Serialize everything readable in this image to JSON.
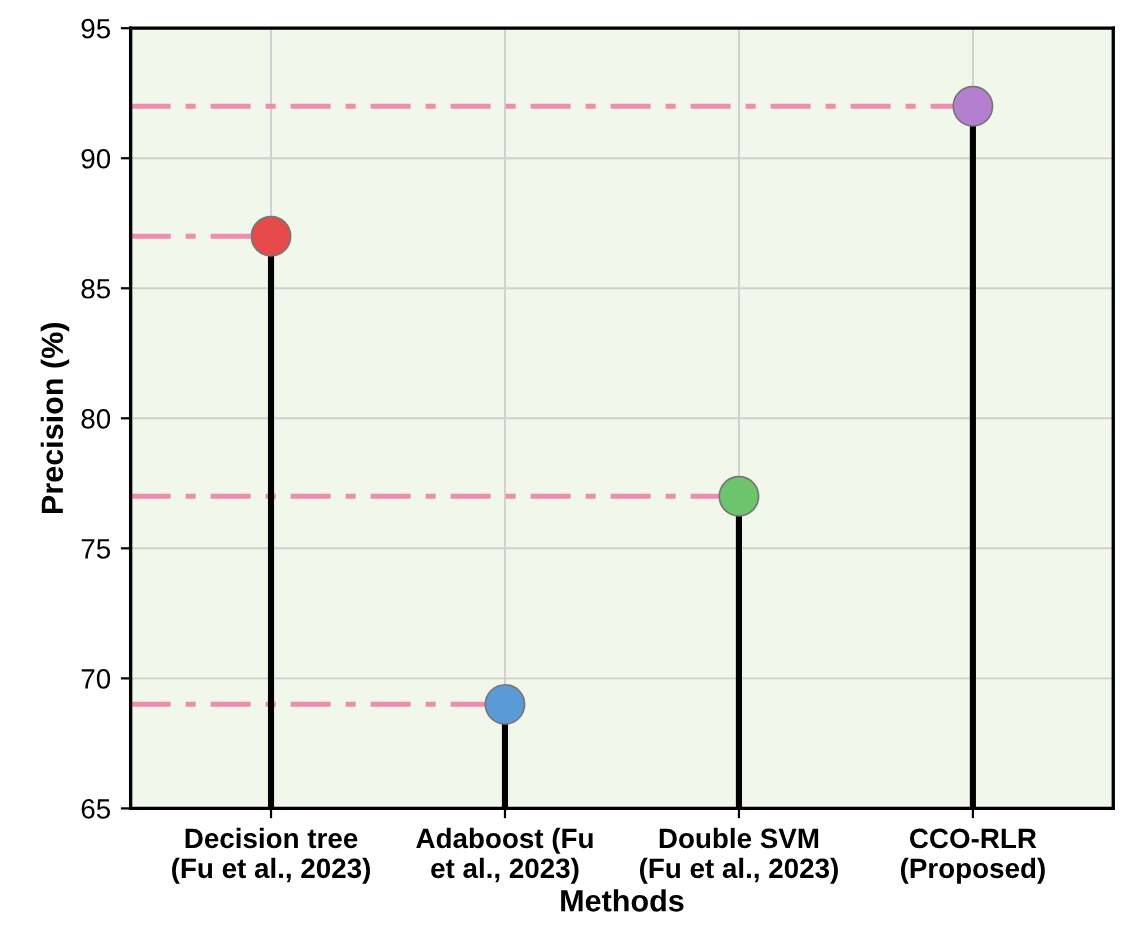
{
  "chart_data": {
    "type": "lollipop",
    "xlabel": "Methods",
    "ylabel": "Precision (%)",
    "categories": [
      "Decision tree\n(Fu et al., 2023)",
      "Adaboost (Fu\net al., 2023)",
      "Double SVM\n(Fu et al., 2023)",
      "CCO-RLR\n(Proposed)"
    ],
    "values": [
      87,
      69,
      77,
      92
    ],
    "colors": [
      "#e64a4a",
      "#5b9bd5",
      "#6cc46c",
      "#b57fd0"
    ],
    "ylim": [
      65,
      95
    ],
    "yticks": [
      65,
      70,
      75,
      80,
      85,
      90,
      95
    ],
    "grid": true,
    "marker": "circle",
    "ref_lines": [
      {
        "axis": "y",
        "value": 87,
        "color": "#f08cb0",
        "line_style": "dashdot"
      },
      {
        "axis": "y",
        "value": 69,
        "color": "#f08cb0",
        "line_style": "dashdot"
      },
      {
        "axis": "y",
        "value": 77,
        "color": "#f08cb0",
        "line_style": "dashdot"
      },
      {
        "axis": "y",
        "value": 92,
        "color": "#f08cb0",
        "line_style": "dashdot"
      }
    ]
  }
}
